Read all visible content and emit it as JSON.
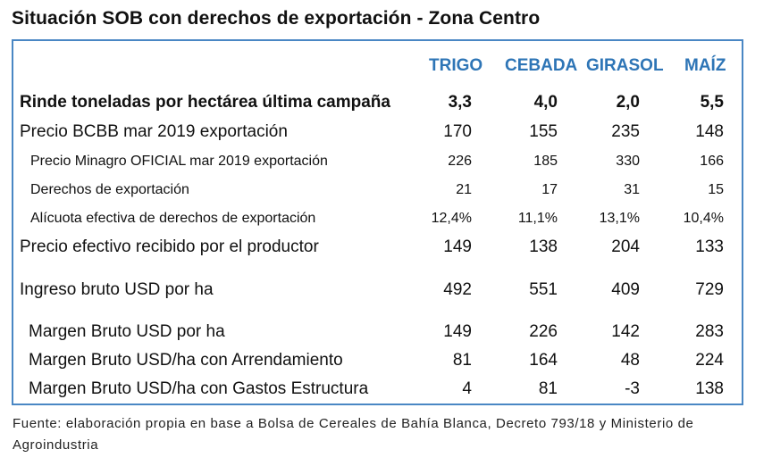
{
  "title": "Situación SOB con derechos de exportación - Zona Centro",
  "columns": [
    "TRIGO",
    "CEBADA",
    "GIRASOL",
    "MAÍZ"
  ],
  "rows": [
    {
      "label": "Rinde toneladas por hectárea última campaña",
      "values": [
        "3,3",
        "4,0",
        "2,0",
        "5,5"
      ]
    },
    {
      "label": "Precio BCBB mar 2019 exportación",
      "values": [
        "170",
        "155",
        "235",
        "148"
      ]
    },
    {
      "label": "Precio Minagro OFICIAL mar 2019 exportación",
      "values": [
        "226",
        "185",
        "330",
        "166"
      ]
    },
    {
      "label": "Derechos de exportación",
      "values": [
        "21",
        "17",
        "31",
        "15"
      ]
    },
    {
      "label": "Alícuota efectiva de derechos de exportación",
      "values": [
        "12,4%",
        "11,1%",
        "13,1%",
        "10,4%"
      ]
    },
    {
      "label": "Precio efectivo recibido por el productor",
      "values": [
        "149",
        "138",
        "204",
        "133"
      ]
    },
    {
      "label": "Ingreso bruto USD por ha",
      "values": [
        "492",
        "551",
        "409",
        "729"
      ]
    },
    {
      "label": "Margen Bruto USD por ha",
      "values": [
        "149",
        "226",
        "142",
        "283"
      ]
    },
    {
      "label": "Margen Bruto USD/ha con Arrendamiento",
      "values": [
        "81",
        "164",
        "48",
        "224"
      ]
    },
    {
      "label": "Margen Bruto USD/ha con Gastos Estructura",
      "values": [
        "4",
        "81",
        "-3",
        "138"
      ]
    }
  ],
  "footer": "Fuente: elaboración propia en base a Bolsa de Cereales de Bahía Blanca, Decreto 793/18 y Ministerio de Agroindustria",
  "colors": {
    "header": "#2e75b6",
    "border": "#4a87c4"
  }
}
